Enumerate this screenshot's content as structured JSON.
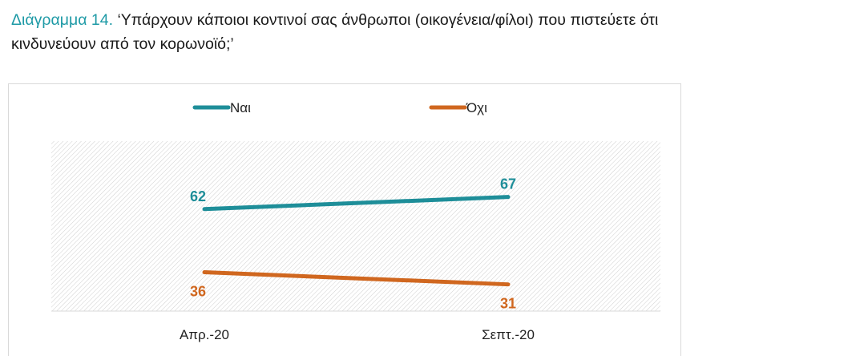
{
  "heading": {
    "label": "Διάγραμμα 14.",
    "question_part1": "‘Υπάρχουν κάποιοι κοντινοί σας άνθρωποι (οικογένεια/φίλοι) που πιστεύετε ότι",
    "question_part2": "κινδυνεύουν από τον κορωνοϊό;’"
  },
  "colors": {
    "nai": "#1e8e99",
    "oxi": "#d0671f",
    "label_accent": "#1e9aa6",
    "plot_hatch": "#c8c8c8"
  },
  "chart_data": {
    "type": "line",
    "title": "",
    "xlabel": "",
    "ylabel": "",
    "categories": [
      "Απρ.-20",
      "Σεπτ.-20"
    ],
    "series": [
      {
        "name": "Ναι",
        "values": [
          62,
          67
        ]
      },
      {
        "name": "Όχι",
        "values": [
          36,
          31
        ]
      }
    ],
    "ylim": [
      0,
      100
    ],
    "legend": "top-center",
    "grid": false,
    "data_labels": true
  }
}
